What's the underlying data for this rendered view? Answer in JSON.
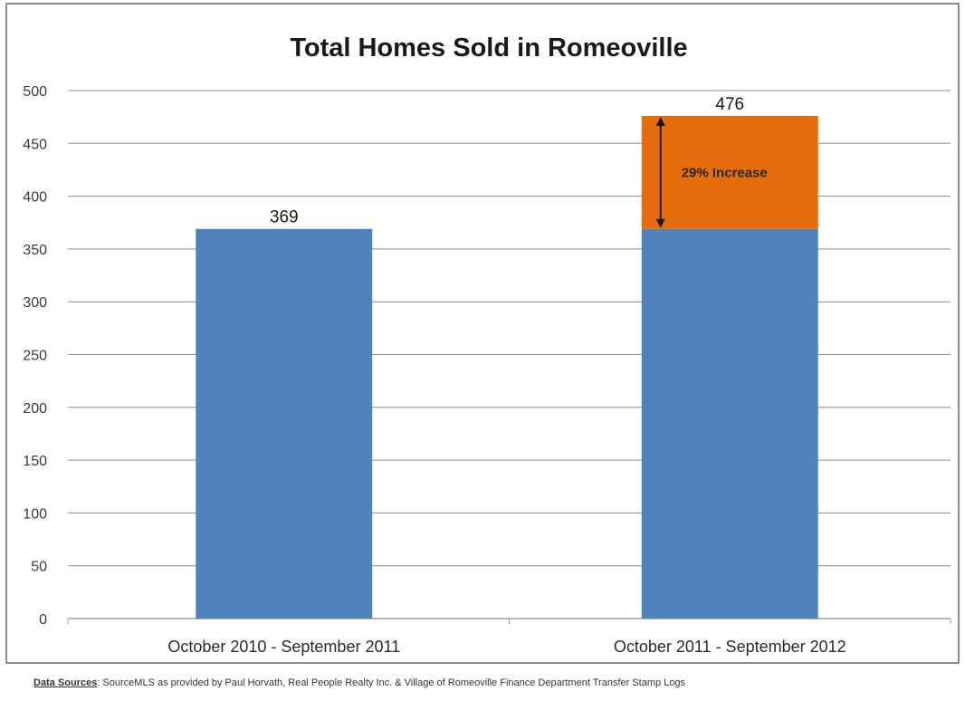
{
  "colors": {
    "primary": "#4f81bd",
    "increase": "#e46c0a",
    "grid": "#8c8c8c",
    "frame": "#8c8c8c"
  },
  "footer": {
    "label": "Data Sources",
    "text": ": SourceMLS as provided by Paul Horvath, Real People Realty Inc. & Village of Romeoville Finance Department Transfer Stamp Logs"
  },
  "chart_data": {
    "type": "bar",
    "title": "Total Homes Sold in Romeoville",
    "xlabel": "",
    "ylabel": "",
    "ylim": [
      0,
      500
    ],
    "yticks": [
      0,
      50,
      100,
      150,
      200,
      250,
      300,
      350,
      400,
      450,
      500
    ],
    "grid": true,
    "legend": "none",
    "categories": [
      "October 2010 - September 2011",
      "October 2011 - September 2012"
    ],
    "values": [
      369,
      476
    ],
    "data_labels": [
      "369",
      "476"
    ],
    "stacked_increase": {
      "category_index": 1,
      "base": 369,
      "top": 476
    },
    "annotations": [
      {
        "text": "29% Increase",
        "category_index": 1,
        "from": 369,
        "to": 476
      }
    ]
  }
}
